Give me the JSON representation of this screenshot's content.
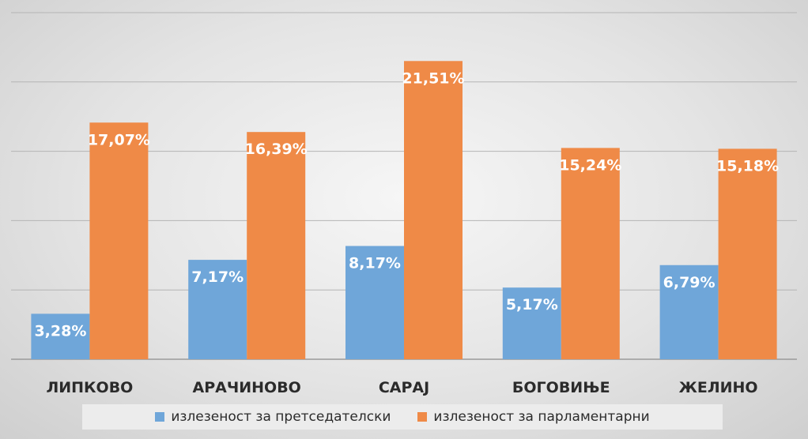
{
  "chart_data": {
    "type": "bar",
    "categories": [
      "ЛИПКОВО",
      "АРАЧИНОВО",
      "САРАЈ",
      "БОГОВИЊЕ",
      "ЖЕЛИНО"
    ],
    "series": [
      {
        "name": "излезеност за претседателски",
        "color": "#6fa6d9",
        "values": [
          3.28,
          7.17,
          8.17,
          5.17,
          6.79
        ],
        "labels": [
          "3,28%",
          "7,17%",
          "8,17%",
          "5,17%",
          "6,79%"
        ]
      },
      {
        "name": "излезеност за парламентарни",
        "color": "#ef8a47",
        "values": [
          17.07,
          16.39,
          21.51,
          15.24,
          15.18
        ],
        "labels": [
          "17,07%",
          "16,39%",
          "21,51%",
          "15,24%",
          "15,18%"
        ]
      }
    ],
    "title": "",
    "xlabel": "",
    "ylabel": "",
    "ylim": [
      0,
      25
    ],
    "grid": true,
    "legend_position": "bottom"
  }
}
